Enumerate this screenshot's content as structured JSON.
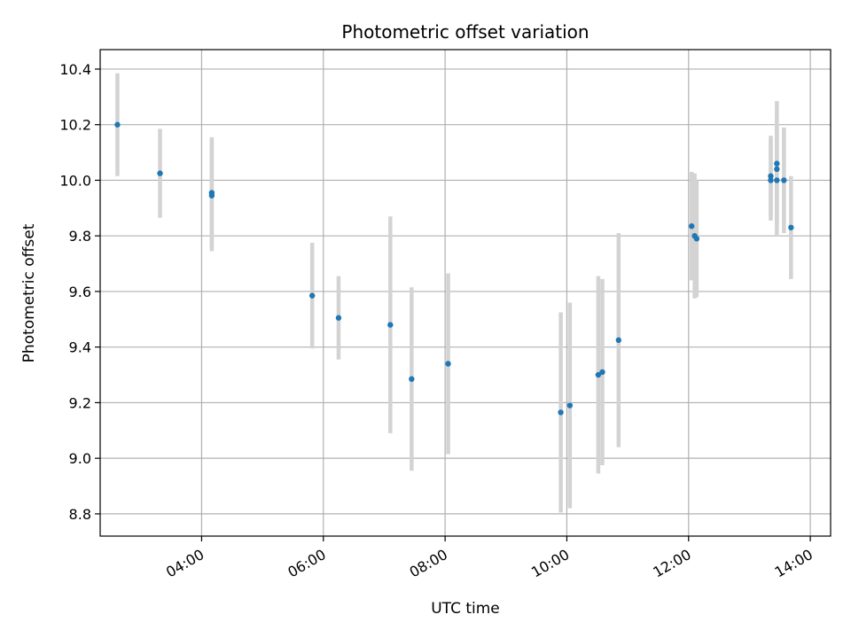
{
  "chart_data": {
    "type": "scatter",
    "title": "Photometric offset variation",
    "xlabel": "UTC time",
    "ylabel": "Photometric offset",
    "x_unit": "hours UTC",
    "xlim": [
      "02:20",
      "14:20"
    ],
    "ylim": [
      8.72,
      10.47
    ],
    "xticks": [
      "04:00",
      "06:00",
      "08:00",
      "10:00",
      "12:00",
      "14:00"
    ],
    "yticks": [
      "8.8",
      "9.0",
      "9.2",
      "9.4",
      "9.6",
      "9.8",
      "10.0",
      "10.2",
      "10.4"
    ],
    "grid": true,
    "marker_color": "#1f77b4",
    "errorbar_color": "#d3d3d3",
    "points": [
      {
        "t": "02:37",
        "y": 10.2,
        "err": 0.185
      },
      {
        "t": "03:19",
        "y": 10.025,
        "err": 0.16
      },
      {
        "t": "04:10",
        "y": 9.955,
        "err": 0.2
      },
      {
        "t": "04:10",
        "y": 9.945,
        "err": 0.2
      },
      {
        "t": "05:49",
        "y": 9.585,
        "err": 0.19
      },
      {
        "t": "06:15",
        "y": 9.505,
        "err": 0.15
      },
      {
        "t": "07:06",
        "y": 9.48,
        "err": 0.39
      },
      {
        "t": "07:27",
        "y": 9.285,
        "err": 0.33
      },
      {
        "t": "08:03",
        "y": 9.34,
        "err": 0.325
      },
      {
        "t": "09:54",
        "y": 9.165,
        "err": 0.36
      },
      {
        "t": "10:03",
        "y": 9.19,
        "err": 0.37
      },
      {
        "t": "10:31",
        "y": 9.3,
        "err": 0.355
      },
      {
        "t": "10:35",
        "y": 9.31,
        "err": 0.335
      },
      {
        "t": "10:51",
        "y": 9.425,
        "err": 0.385
      },
      {
        "t": "12:03",
        "y": 9.835,
        "err": 0.195
      },
      {
        "t": "12:06",
        "y": 9.8,
        "err": 0.225
      },
      {
        "t": "12:08",
        "y": 9.79,
        "err": 0.21
      },
      {
        "t": "13:21",
        "y": 10.015,
        "err": 0.145
      },
      {
        "t": "13:21",
        "y": 10.0,
        "err": 0.145
      },
      {
        "t": "13:27",
        "y": 10.06,
        "err": 0.225
      },
      {
        "t": "13:27",
        "y": 10.04,
        "err": 0.2
      },
      {
        "t": "13:27",
        "y": 10.0,
        "err": 0.2
      },
      {
        "t": "13:34",
        "y": 10.0,
        "err": 0.19
      },
      {
        "t": "13:41",
        "y": 9.83,
        "err": 0.185
      }
    ]
  }
}
